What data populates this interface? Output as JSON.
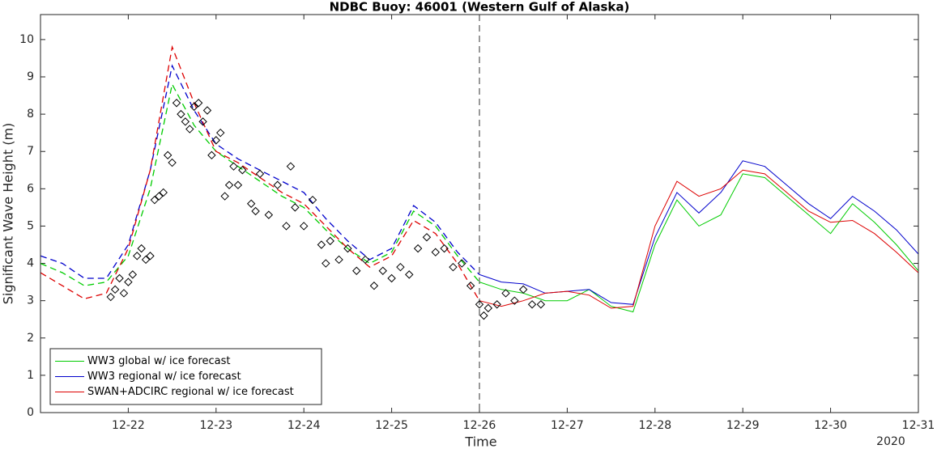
{
  "chart_data": {
    "type": "line",
    "title": "NDBC Buoy: 46001 (Western Gulf of Alaska)",
    "x_label": "Time",
    "y_label": "Significant Wave Height (m)",
    "x_year_label": "2020",
    "xlim": [
      21,
      31
    ],
    "ylim": [
      0,
      10.67
    ],
    "xticks": [
      {
        "value": 22,
        "label": "12-22"
      },
      {
        "value": 23,
        "label": "12-23"
      },
      {
        "value": 24,
        "label": "12-24"
      },
      {
        "value": 25,
        "label": "12-25"
      },
      {
        "value": 26,
        "label": "12-26"
      },
      {
        "value": 27,
        "label": "12-27"
      },
      {
        "value": 28,
        "label": "12-28"
      },
      {
        "value": 29,
        "label": "12-29"
      },
      {
        "value": 30,
        "label": "12-30"
      },
      {
        "value": 31,
        "label": "12-31"
      }
    ],
    "yticks": [
      0,
      1,
      2,
      3,
      4,
      5,
      6,
      7,
      8,
      9,
      10
    ],
    "forecast_start": 26,
    "legend": "lower-left",
    "x": [
      21,
      21.25,
      21.5,
      21.75,
      22,
      22.25,
      22.5,
      22.75,
      23,
      23.25,
      23.5,
      23.75,
      24,
      24.25,
      24.5,
      24.75,
      25,
      25.25,
      25.5,
      25.75,
      26,
      26.25,
      26.5,
      26.75,
      27,
      27.25,
      27.5,
      27.75,
      28,
      28.25,
      28.5,
      28.75,
      29,
      29.25,
      29.5,
      29.75,
      30,
      30.25,
      30.5,
      30.75,
      31
    ],
    "series": [
      {
        "name": "WW3 global w/ ice forecast",
        "color": "#00cc00",
        "values": [
          4.0,
          3.75,
          3.4,
          3.5,
          4.2,
          6.0,
          8.8,
          7.7,
          7.0,
          6.6,
          6.2,
          5.8,
          5.5,
          4.9,
          4.4,
          4.0,
          4.3,
          5.4,
          5.0,
          4.2,
          3.5,
          3.3,
          3.2,
          3.0,
          3.0,
          3.3,
          2.85,
          2.7,
          4.5,
          5.7,
          5.0,
          5.3,
          6.4,
          6.3,
          5.8,
          5.3,
          4.8,
          5.6,
          5.1,
          4.5,
          3.8
        ]
      },
      {
        "name": "WW3 regional w/ ice forecast",
        "color": "#0000cc",
        "values": [
          4.2,
          4.0,
          3.6,
          3.6,
          4.5,
          6.5,
          9.3,
          8.1,
          7.2,
          6.8,
          6.5,
          6.2,
          5.9,
          5.2,
          4.6,
          4.1,
          4.4,
          5.55,
          5.1,
          4.3,
          3.7,
          3.5,
          3.45,
          3.2,
          3.25,
          3.3,
          2.95,
          2.9,
          4.7,
          5.9,
          5.35,
          5.9,
          6.75,
          6.6,
          6.1,
          5.6,
          5.2,
          5.8,
          5.4,
          4.9,
          4.25
        ]
      },
      {
        "name": "SWAN+ADCIRC regional w/ ice forecast",
        "color": "#dd0000",
        "values": [
          3.75,
          3.4,
          3.05,
          3.2,
          4.4,
          6.5,
          9.8,
          8.3,
          7.0,
          6.7,
          6.3,
          5.9,
          5.6,
          5.0,
          4.4,
          3.9,
          4.2,
          5.15,
          4.8,
          4.0,
          3.0,
          2.85,
          3.0,
          3.2,
          3.25,
          3.15,
          2.8,
          2.85,
          5.0,
          6.2,
          5.8,
          6.0,
          6.5,
          6.4,
          5.9,
          5.4,
          5.1,
          5.15,
          4.8,
          4.3,
          3.75
        ]
      }
    ],
    "observations": {
      "color": "#000000",
      "x": [
        21.8,
        21.85,
        21.9,
        21.95,
        22.0,
        22.05,
        22.1,
        22.15,
        22.2,
        22.25,
        22.3,
        22.35,
        22.4,
        22.45,
        22.5,
        22.55,
        22.6,
        22.65,
        22.7,
        22.75,
        22.8,
        22.85,
        22.9,
        22.95,
        23.0,
        23.05,
        23.1,
        23.15,
        23.2,
        23.25,
        23.3,
        23.4,
        23.45,
        23.5,
        23.6,
        23.7,
        23.8,
        23.85,
        23.9,
        24.0,
        24.1,
        24.2,
        24.25,
        24.3,
        24.4,
        24.5,
        24.6,
        24.7,
        24.8,
        24.9,
        25.0,
        25.1,
        25.2,
        25.3,
        25.4,
        25.5,
        25.6,
        25.7,
        25.8,
        25.9,
        26.0,
        26.05,
        26.1,
        26.2,
        26.3,
        26.4,
        26.5,
        26.6,
        26.7
      ],
      "values": [
        3.1,
        3.3,
        3.6,
        3.2,
        3.5,
        3.7,
        4.2,
        4.4,
        4.1,
        4.2,
        5.7,
        5.8,
        5.9,
        6.9,
        6.7,
        8.3,
        8.0,
        7.8,
        7.6,
        8.2,
        8.3,
        7.8,
        8.1,
        6.9,
        7.3,
        7.5,
        5.8,
        6.1,
        6.6,
        6.1,
        6.5,
        5.6,
        5.4,
        6.4,
        5.3,
        6.1,
        5.0,
        6.6,
        5.5,
        5.0,
        5.7,
        4.5,
        4.0,
        4.6,
        4.1,
        4.4,
        3.8,
        4.1,
        3.4,
        3.8,
        3.6,
        3.9,
        3.7,
        4.4,
        4.7,
        4.3,
        4.4,
        3.9,
        4.0,
        3.4,
        2.9,
        2.6,
        2.8,
        2.9,
        3.2,
        3.0,
        3.3,
        2.9,
        2.9
      ]
    }
  }
}
